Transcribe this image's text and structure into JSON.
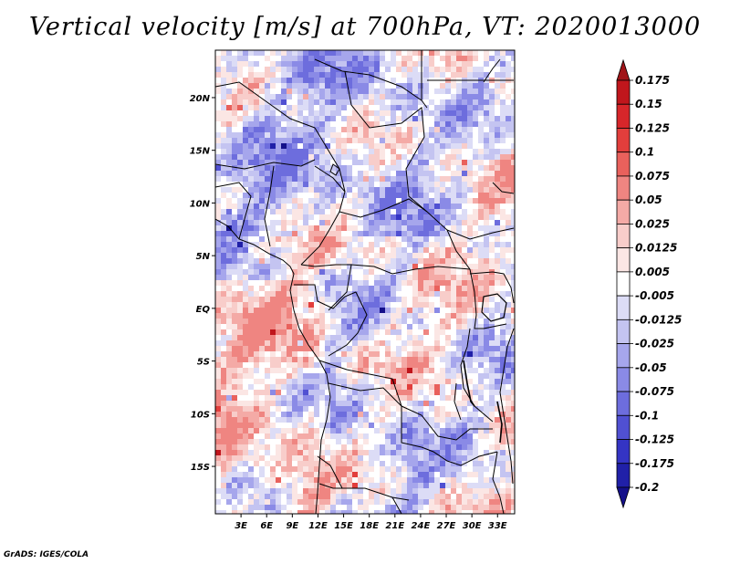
{
  "title": "Vertical velocity [m/s] at 700hPa, VT: 2020013000",
  "footer": "GrADS: IGES/COLA",
  "map": {
    "lon_range": [
      0,
      35
    ],
    "lat_range": [
      -19.5,
      24.5
    ],
    "lat_ticks": [
      {
        "value": 20,
        "label": "20N"
      },
      {
        "value": 15,
        "label": "15N"
      },
      {
        "value": 10,
        "label": "10N"
      },
      {
        "value": 5,
        "label": "5N"
      },
      {
        "value": 0,
        "label": "EQ"
      },
      {
        "value": -5,
        "label": "5S"
      },
      {
        "value": -10,
        "label": "10S"
      },
      {
        "value": -15,
        "label": "15S"
      }
    ],
    "lon_ticks": [
      {
        "value": 3,
        "label": "3E"
      },
      {
        "value": 6,
        "label": "6E"
      },
      {
        "value": 9,
        "label": "9E"
      },
      {
        "value": 12,
        "label": "12E"
      },
      {
        "value": 15,
        "label": "15E"
      },
      {
        "value": 18,
        "label": "18E"
      },
      {
        "value": 21,
        "label": "21E"
      },
      {
        "value": 24,
        "label": "24E"
      },
      {
        "value": 27,
        "label": "27E"
      },
      {
        "value": 30,
        "label": "30E"
      },
      {
        "value": 33,
        "label": "33E"
      }
    ]
  },
  "colorbar": {
    "labels": [
      "0.175",
      "0.15",
      "0.125",
      "0.1",
      "0.075",
      "0.05",
      "0.025",
      "0.0125",
      "0.005",
      "-0.005",
      "-0.0125",
      "-0.025",
      "-0.05",
      "-0.075",
      "-0.1",
      "-0.125",
      "-0.175",
      "-0.2"
    ],
    "colors": [
      "#a01418",
      "#c0161c",
      "#d7262a",
      "#e23e3c",
      "#e9615c",
      "#ef8581",
      "#f4aaa6",
      "#f8cdca",
      "#fbe6e4",
      "#ffffff",
      "#dcdcf6",
      "#c4c4f1",
      "#a6a6ec",
      "#8a8ae6",
      "#6d6ddd",
      "#5050d2",
      "#3434c4",
      "#2020a8",
      "#14108a"
    ]
  }
}
